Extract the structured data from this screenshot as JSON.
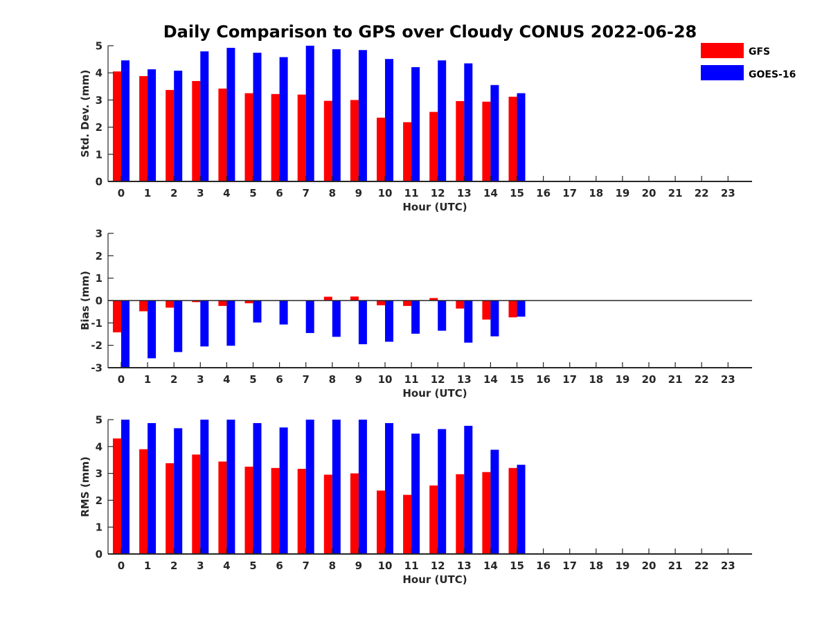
{
  "title": "Daily Comparison to GPS over Cloudy CONUS 2022-06-28",
  "legend": {
    "placement": "top-right",
    "items": [
      {
        "label": "GFS",
        "color": "#ff0000"
      },
      {
        "label": "GOES-16",
        "color": "#0000ff"
      }
    ]
  },
  "chart_data": [
    {
      "type": "bar",
      "xlabel": "Hour (UTC)",
      "ylabel": "Std. Dev. (mm)",
      "ylim": [
        0,
        5
      ],
      "yticks": [
        0,
        1,
        2,
        3,
        4,
        5
      ],
      "categories": [
        "0",
        "1",
        "2",
        "3",
        "4",
        "5",
        "6",
        "7",
        "8",
        "9",
        "10",
        "11",
        "12",
        "13",
        "14",
        "15",
        "16",
        "17",
        "18",
        "19",
        "20",
        "21",
        "22",
        "23"
      ],
      "series": [
        {
          "name": "GFS",
          "color": "#ff0000",
          "values": [
            4.05,
            3.88,
            3.37,
            3.7,
            3.42,
            3.25,
            3.22,
            3.2,
            2.97,
            3.0,
            2.35,
            2.18,
            2.56,
            2.96,
            2.94,
            3.12,
            null,
            null,
            null,
            null,
            null,
            null,
            null,
            null
          ]
        },
        {
          "name": "GOES-16",
          "color": "#0000ff",
          "values": [
            4.46,
            4.13,
            4.08,
            4.79,
            4.92,
            4.74,
            4.58,
            5.0,
            4.87,
            4.84,
            4.51,
            4.21,
            4.46,
            4.35,
            3.55,
            3.25,
            null,
            null,
            null,
            null,
            null,
            null,
            null,
            null
          ]
        }
      ]
    },
    {
      "type": "bar",
      "xlabel": "Hour (UTC)",
      "ylabel": "Bias (mm)",
      "ylim": [
        -3,
        3
      ],
      "yticks": [
        -3,
        -2,
        -1,
        0,
        1,
        2,
        3
      ],
      "categories": [
        "0",
        "1",
        "2",
        "3",
        "4",
        "5",
        "6",
        "7",
        "8",
        "9",
        "10",
        "11",
        "12",
        "13",
        "14",
        "15",
        "16",
        "17",
        "18",
        "19",
        "20",
        "21",
        "22",
        "23"
      ],
      "series": [
        {
          "name": "GFS",
          "color": "#ff0000",
          "values": [
            -1.42,
            -0.48,
            -0.32,
            -0.07,
            -0.24,
            -0.12,
            0.0,
            0.0,
            0.17,
            0.18,
            -0.21,
            -0.24,
            0.11,
            -0.36,
            -0.85,
            -0.75,
            null,
            null,
            null,
            null,
            null,
            null,
            null,
            null
          ]
        },
        {
          "name": "GOES-16",
          "color": "#0000ff",
          "values": [
            -3.0,
            -2.58,
            -2.3,
            -2.05,
            -2.02,
            -0.98,
            -1.07,
            -1.45,
            -1.62,
            -1.95,
            -1.84,
            -1.48,
            -1.35,
            -1.88,
            -1.6,
            -0.72,
            null,
            null,
            null,
            null,
            null,
            null,
            null,
            null
          ]
        }
      ]
    },
    {
      "type": "bar",
      "xlabel": "Hour (UTC)",
      "ylabel": "RMS (mm)",
      "ylim": [
        0,
        5
      ],
      "yticks": [
        0,
        1,
        2,
        3,
        4,
        5
      ],
      "categories": [
        "0",
        "1",
        "2",
        "3",
        "4",
        "5",
        "6",
        "7",
        "8",
        "9",
        "10",
        "11",
        "12",
        "13",
        "14",
        "15",
        "16",
        "17",
        "18",
        "19",
        "20",
        "21",
        "22",
        "23"
      ],
      "series": [
        {
          "name": "GFS",
          "color": "#ff0000",
          "values": [
            4.3,
            3.9,
            3.38,
            3.7,
            3.44,
            3.25,
            3.2,
            3.17,
            2.95,
            3.0,
            2.36,
            2.2,
            2.55,
            2.97,
            3.05,
            3.2,
            null,
            null,
            null,
            null,
            null,
            null,
            null,
            null
          ]
        },
        {
          "name": "GOES-16",
          "color": "#0000ff",
          "values": [
            5.0,
            4.87,
            4.68,
            5.0,
            5.0,
            4.87,
            4.71,
            5.0,
            5.0,
            5.0,
            4.87,
            4.48,
            4.65,
            4.77,
            3.88,
            3.32,
            null,
            null,
            null,
            null,
            null,
            null,
            null,
            null
          ]
        }
      ]
    }
  ]
}
